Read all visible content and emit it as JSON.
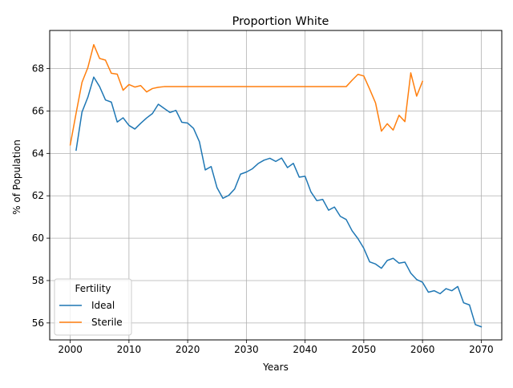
{
  "chart_data": {
    "type": "line",
    "title": "Proportion White",
    "xlabel": "Years",
    "ylabel": "% of Population",
    "xlim": [
      1996.5,
      2073.5
    ],
    "ylim": [
      55.2,
      69.8
    ],
    "xticks": [
      2000,
      2010,
      2020,
      2030,
      2040,
      2050,
      2060,
      2070
    ],
    "yticks": [
      56,
      58,
      60,
      62,
      64,
      66,
      68
    ],
    "grid": true,
    "legend": {
      "title": "Fertility",
      "placement": "lower-left"
    },
    "series": [
      {
        "name": "Ideal",
        "color": "#1f77b4",
        "x": [
          2001,
          2002,
          2003,
          2004,
          2005,
          2006,
          2007,
          2008,
          2009,
          2010,
          2011,
          2012,
          2013,
          2014,
          2015,
          2016,
          2017,
          2018,
          2019,
          2020,
          2021,
          2022,
          2023,
          2024,
          2025,
          2026,
          2027,
          2028,
          2029,
          2030,
          2031,
          2032,
          2033,
          2034,
          2035,
          2036,
          2037,
          2038,
          2039,
          2040,
          2041,
          2042,
          2043,
          2044,
          2045,
          2046,
          2047,
          2048,
          2049,
          2050,
          2051,
          2052,
          2053,
          2054,
          2055,
          2056,
          2057,
          2058,
          2059,
          2060,
          2061,
          2062,
          2063,
          2064,
          2065,
          2066,
          2067,
          2068,
          2069,
          2070
        ],
        "y": [
          64.15,
          65.95,
          66.65,
          67.6,
          67.15,
          66.52,
          66.42,
          65.48,
          65.68,
          65.32,
          65.15,
          65.42,
          65.67,
          65.88,
          66.32,
          66.12,
          65.93,
          66.03,
          65.47,
          65.43,
          65.18,
          64.55,
          63.22,
          63.38,
          62.38,
          61.88,
          62.02,
          62.32,
          63.02,
          63.12,
          63.27,
          63.52,
          63.68,
          63.77,
          63.62,
          63.78,
          63.33,
          63.53,
          62.88,
          62.92,
          62.18,
          61.77,
          61.83,
          61.32,
          61.47,
          61.03,
          60.88,
          60.35,
          59.98,
          59.52,
          58.88,
          58.78,
          58.58,
          58.95,
          59.05,
          58.82,
          58.87,
          58.35,
          58.05,
          57.92,
          57.45,
          57.52,
          57.38,
          57.62,
          57.52,
          57.72,
          56.95,
          56.85,
          55.92,
          55.82
        ]
      },
      {
        "name": "Sterile",
        "color": "#ff7f0e",
        "x": [
          2000,
          2001,
          2002,
          2003,
          2004,
          2005,
          2006,
          2007,
          2008,
          2009,
          2010,
          2011,
          2012,
          2013,
          2014,
          2015,
          2016,
          2017,
          2018,
          2019,
          2020,
          2021,
          2022,
          2023,
          2024,
          2025,
          2026,
          2027,
          2028,
          2029,
          2030,
          2031,
          2032,
          2033,
          2034,
          2035,
          2036,
          2037,
          2038,
          2039,
          2040,
          2041,
          2042,
          2043,
          2044,
          2045,
          2046,
          2047,
          2048,
          2049,
          2050,
          2051,
          2052,
          2053,
          2054,
          2055,
          2056,
          2057,
          2058,
          2059,
          2060
        ],
        "y": [
          64.4,
          65.9,
          67.35,
          68.05,
          69.13,
          68.48,
          68.4,
          67.78,
          67.74,
          66.98,
          67.25,
          67.13,
          67.2,
          66.9,
          67.06,
          67.12,
          67.15,
          67.15,
          67.15,
          67.15,
          67.15,
          67.15,
          67.15,
          67.15,
          67.15,
          67.15,
          67.15,
          67.15,
          67.15,
          67.15,
          67.15,
          67.15,
          67.15,
          67.15,
          67.15,
          67.15,
          67.15,
          67.15,
          67.15,
          67.15,
          67.15,
          67.15,
          67.15,
          67.15,
          67.15,
          67.15,
          67.15,
          67.15,
          67.45,
          67.73,
          67.65,
          67.03,
          66.38,
          65.05,
          65.4,
          65.1,
          65.8,
          65.5,
          67.8,
          66.7,
          67.4
        ]
      }
    ]
  }
}
